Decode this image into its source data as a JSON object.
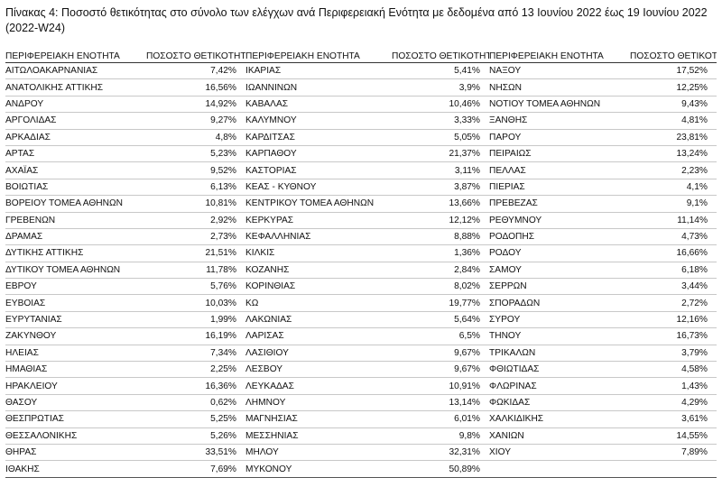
{
  "caption": "Πίνακας 4: Ποσοστό θετικότητας στο σύνολο των ελέγχων ανά Περιφερειακή Ενότητα με δεδομένα από 13 Ιουνίου 2022 έως 19 Ιουνίου 2022 (2022-W24)",
  "headers": {
    "region": "ΠΕΡΙΦΕΡΕΙΑΚΗ ΕΝΟΤΗΤΑ",
    "rate": "ΠΟΣΟΣΤΟ ΘΕΤΙΚΟΤΗΤΑΣ"
  },
  "rows": [
    [
      {
        "n": "ΑΙΤΩΛΟΑΚΑΡΝΑΝΙΑΣ",
        "v": "7,42%"
      },
      {
        "n": "ΙΚΑΡΙΑΣ",
        "v": "5,41%"
      },
      {
        "n": "ΝΑΞΟΥ",
        "v": "17,52%"
      }
    ],
    [
      {
        "n": "ΑΝΑΤΟΛΙΚΗΣ ΑΤΤΙΚΗΣ",
        "v": "16,56%"
      },
      {
        "n": "ΙΩΑΝΝΙΝΩΝ",
        "v": "3,9%"
      },
      {
        "n": "ΝΗΣΩΝ",
        "v": "12,25%"
      }
    ],
    [
      {
        "n": "ΑΝΔΡΟΥ",
        "v": "14,92%"
      },
      {
        "n": "ΚΑΒΑΛΑΣ",
        "v": "10,46%"
      },
      {
        "n": "ΝΟΤΙΟΥ ΤΟΜΕΑ ΑΘΗΝΩΝ",
        "v": "9,43%"
      }
    ],
    [
      {
        "n": "ΑΡΓΟΛΙΔΑΣ",
        "v": "9,27%"
      },
      {
        "n": "ΚΑΛΥΜΝΟΥ",
        "v": "3,33%"
      },
      {
        "n": "ΞΑΝΘΗΣ",
        "v": "4,81%"
      }
    ],
    [
      {
        "n": "ΑΡΚΑΔΙΑΣ",
        "v": "4,8%"
      },
      {
        "n": "ΚΑΡΔΙΤΣΑΣ",
        "v": "5,05%"
      },
      {
        "n": "ΠΑΡΟΥ",
        "v": "23,81%"
      }
    ],
    [
      {
        "n": "ΑΡΤΑΣ",
        "v": "5,23%"
      },
      {
        "n": "ΚΑΡΠΑΘΟΥ",
        "v": "21,37%"
      },
      {
        "n": "ΠΕΙΡΑΙΩΣ",
        "v": "13,24%"
      }
    ],
    [
      {
        "n": "ΑΧΑΪΑΣ",
        "v": "9,52%"
      },
      {
        "n": "ΚΑΣΤΟΡΙΑΣ",
        "v": "3,11%"
      },
      {
        "n": "ΠΕΛΛΑΣ",
        "v": "2,23%"
      }
    ],
    [
      {
        "n": "ΒΟΙΩΤΙΑΣ",
        "v": "6,13%"
      },
      {
        "n": "ΚΕΑΣ - ΚΥΘΝΟΥ",
        "v": "3,87%"
      },
      {
        "n": "ΠΙΕΡΙΑΣ",
        "v": "4,1%"
      }
    ],
    [
      {
        "n": "ΒΟΡΕΙΟΥ ΤΟΜΕΑ ΑΘΗΝΩΝ",
        "v": "10,81%"
      },
      {
        "n": "ΚΕΝΤΡΙΚΟΥ ΤΟΜΕΑ ΑΘΗΝΩΝ",
        "v": "13,66%"
      },
      {
        "n": "ΠΡΕΒΕΖΑΣ",
        "v": "9,1%"
      }
    ],
    [
      {
        "n": "ΓΡΕΒΕΝΩΝ",
        "v": "2,92%"
      },
      {
        "n": "ΚΕΡΚΥΡΑΣ",
        "v": "12,12%"
      },
      {
        "n": "ΡΕΘΥΜΝΟΥ",
        "v": "11,14%"
      }
    ],
    [
      {
        "n": "ΔΡΑΜΑΣ",
        "v": "2,73%"
      },
      {
        "n": "ΚΕΦΑΛΛΗΝΙΑΣ",
        "v": "8,88%"
      },
      {
        "n": "ΡΟΔΟΠΗΣ",
        "v": "4,73%"
      }
    ],
    [
      {
        "n": "ΔΥΤΙΚΗΣ ΑΤΤΙΚΗΣ",
        "v": "21,51%"
      },
      {
        "n": "ΚΙΛΚΙΣ",
        "v": "1,36%"
      },
      {
        "n": "ΡΟΔΟΥ",
        "v": "16,66%"
      }
    ],
    [
      {
        "n": "ΔΥΤΙΚΟΥ ΤΟΜΕΑ ΑΘΗΝΩΝ",
        "v": "11,78%"
      },
      {
        "n": "ΚΟΖΑΝΗΣ",
        "v": "2,84%"
      },
      {
        "n": "ΣΑΜΟΥ",
        "v": "6,18%"
      }
    ],
    [
      {
        "n": "ΕΒΡΟΥ",
        "v": "5,76%"
      },
      {
        "n": "ΚΟΡΙΝΘΙΑΣ",
        "v": "8,02%"
      },
      {
        "n": "ΣΕΡΡΩΝ",
        "v": "3,44%"
      }
    ],
    [
      {
        "n": "ΕΥΒΟΙΑΣ",
        "v": "10,03%"
      },
      {
        "n": "ΚΩ",
        "v": "19,77%"
      },
      {
        "n": "ΣΠΟΡΑΔΩΝ",
        "v": "2,72%"
      }
    ],
    [
      {
        "n": "ΕΥΡΥΤΑΝΙΑΣ",
        "v": "1,99%"
      },
      {
        "n": "ΛΑΚΩΝΙΑΣ",
        "v": "5,64%"
      },
      {
        "n": "ΣΥΡΟΥ",
        "v": "12,16%"
      }
    ],
    [
      {
        "n": "ΖΑΚΥΝΘΟΥ",
        "v": "16,19%"
      },
      {
        "n": "ΛΑΡΙΣΑΣ",
        "v": "6,5%"
      },
      {
        "n": "ΤΗΝΟΥ",
        "v": "16,73%"
      }
    ],
    [
      {
        "n": "ΗΛΕΙΑΣ",
        "v": "7,34%"
      },
      {
        "n": "ΛΑΣΙΘΙΟΥ",
        "v": "9,67%"
      },
      {
        "n": "ΤΡΙΚΑΛΩΝ",
        "v": "3,79%"
      }
    ],
    [
      {
        "n": "ΗΜΑΘΙΑΣ",
        "v": "2,25%"
      },
      {
        "n": "ΛΕΣΒΟΥ",
        "v": "9,67%"
      },
      {
        "n": "ΦΘΙΩΤΙΔΑΣ",
        "v": "4,58%"
      }
    ],
    [
      {
        "n": "ΗΡΑΚΛΕΙΟΥ",
        "v": "16,36%"
      },
      {
        "n": "ΛΕΥΚΑΔΑΣ",
        "v": "10,91%"
      },
      {
        "n": "ΦΛΩΡΙΝΑΣ",
        "v": "1,43%"
      }
    ],
    [
      {
        "n": "ΘΑΣΟΥ",
        "v": "0,62%"
      },
      {
        "n": "ΛΗΜΝΟΥ",
        "v": "13,14%"
      },
      {
        "n": "ΦΩΚΙΔΑΣ",
        "v": "4,29%"
      }
    ],
    [
      {
        "n": "ΘΕΣΠΡΩΤΙΑΣ",
        "v": "5,25%"
      },
      {
        "n": "ΜΑΓΝΗΣΙΑΣ",
        "v": "6,01%"
      },
      {
        "n": "ΧΑΛΚΙΔΙΚΗΣ",
        "v": "3,61%"
      }
    ],
    [
      {
        "n": "ΘΕΣΣΑΛΟΝΙΚΗΣ",
        "v": "5,26%"
      },
      {
        "n": "ΜΕΣΣΗΝΙΑΣ",
        "v": "9,8%"
      },
      {
        "n": "ΧΑΝΙΩΝ",
        "v": "14,55%"
      }
    ],
    [
      {
        "n": "ΘΗΡΑΣ",
        "v": "33,51%"
      },
      {
        "n": "ΜΗΛΟΥ",
        "v": "32,31%"
      },
      {
        "n": "ΧΙΟΥ",
        "v": "7,89%"
      }
    ],
    [
      {
        "n": "ΙΘΑΚΗΣ",
        "v": "7,69%"
      },
      {
        "n": "ΜΥΚΟΝΟΥ",
        "v": "50,89%"
      },
      {
        "n": "",
        "v": ""
      }
    ]
  ]
}
